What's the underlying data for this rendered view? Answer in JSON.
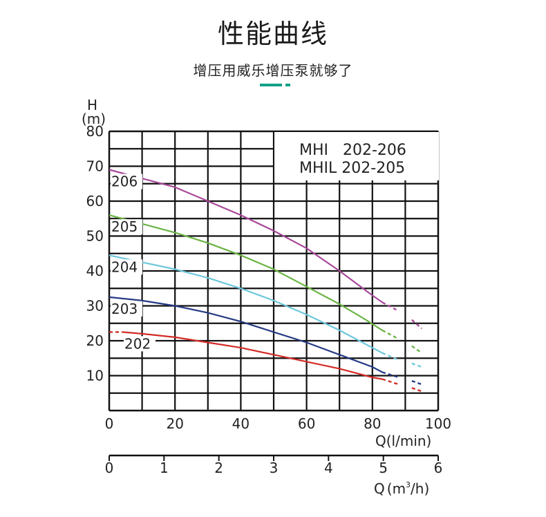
{
  "header": {
    "title": "性能曲线",
    "subtitle": "增压用威乐增压泵就够了",
    "accent_color": "#13a187"
  },
  "chart_data": {
    "type": "line",
    "legend_box": [
      "MHI   202-206",
      "MHIL 202-205"
    ],
    "y_axis": {
      "label_top": "H",
      "label_unit": "(m)",
      "ylim": [
        0,
        80
      ],
      "ticks": [
        10,
        20,
        30,
        40,
        50,
        60,
        70,
        80
      ],
      "tick_labels": [
        "10",
        "20",
        "30",
        "40",
        "50",
        "60",
        "70",
        "80"
      ]
    },
    "x_axis_primary": {
      "label": "Q(l/min)",
      "xlim": [
        0,
        100
      ],
      "ticks": [
        0,
        20,
        40,
        60,
        80,
        100
      ],
      "tick_labels": [
        "0",
        "20",
        "40",
        "60",
        "80",
        "100"
      ]
    },
    "x_axis_secondary": {
      "label_q": "Q",
      "label_paren_open": "(",
      "label_m": "m",
      "label_sup": "3",
      "label_rest": "/h)",
      "xlim": [
        0,
        6
      ],
      "ticks": [
        0,
        1,
        2,
        3,
        4,
        5,
        6
      ],
      "tick_labels": [
        "0",
        "1",
        "2",
        "3",
        "4",
        "5",
        "6"
      ]
    },
    "grid": true,
    "series": [
      {
        "name": "206",
        "color": "#a8489a",
        "solid": [
          [
            0,
            69
          ],
          [
            10,
            66.5
          ],
          [
            20,
            64
          ],
          [
            30,
            60
          ],
          [
            40,
            56
          ],
          [
            50,
            51.5
          ],
          [
            60,
            46.5
          ],
          [
            70,
            40
          ],
          [
            80,
            33
          ],
          [
            83,
            31
          ]
        ],
        "dashed": [
          [
            83,
            31
          ],
          [
            88,
            28.5
          ],
          [
            92,
            26
          ],
          [
            95,
            23.5
          ]
        ]
      },
      {
        "name": "205",
        "color": "#6ab445",
        "solid": [
          [
            0,
            56
          ],
          [
            10,
            53.5
          ],
          [
            20,
            51
          ],
          [
            30,
            48
          ],
          [
            40,
            44.5
          ],
          [
            50,
            40.5
          ],
          [
            60,
            35.5
          ],
          [
            70,
            30.5
          ],
          [
            78,
            26
          ],
          [
            83,
            23
          ]
        ],
        "dashed": [
          [
            83,
            23
          ],
          [
            88,
            20.5
          ],
          [
            92,
            18.5
          ],
          [
            95,
            16.5
          ]
        ]
      },
      {
        "name": "204",
        "color": "#6ec7dc",
        "solid": [
          [
            0,
            44.5
          ],
          [
            10,
            42.5
          ],
          [
            20,
            40.5
          ],
          [
            30,
            38
          ],
          [
            40,
            35
          ],
          [
            50,
            31.5
          ],
          [
            60,
            27.5
          ],
          [
            70,
            23
          ],
          [
            80,
            18
          ],
          [
            83,
            16.5
          ]
        ],
        "dashed": [
          [
            83,
            16.5
          ],
          [
            88,
            14.5
          ],
          [
            92,
            13.5
          ],
          [
            95,
            12.5
          ]
        ]
      },
      {
        "name": "203",
        "color": "#253a84",
        "solid": [
          [
            0,
            32.5
          ],
          [
            10,
            31.5
          ],
          [
            20,
            30
          ],
          [
            30,
            28
          ],
          [
            40,
            25.5
          ],
          [
            50,
            22.5
          ],
          [
            60,
            19.5
          ],
          [
            70,
            16
          ],
          [
            80,
            12.5
          ],
          [
            83,
            11
          ]
        ],
        "dashed": [
          [
            83,
            11
          ],
          [
            88,
            9.5
          ],
          [
            92,
            8.5
          ],
          [
            95,
            7.5
          ]
        ]
      },
      {
        "name": "202",
        "color": "#d32b26",
        "solid": [
          [
            4,
            22.5
          ],
          [
            10,
            22
          ],
          [
            20,
            21
          ],
          [
            30,
            19.5
          ],
          [
            40,
            18
          ],
          [
            50,
            16
          ],
          [
            60,
            14
          ],
          [
            70,
            12
          ],
          [
            80,
            9.5
          ],
          [
            83,
            9
          ]
        ],
        "dashed": [
          [
            0,
            22.5
          ],
          [
            4,
            22.5
          ],
          [
            83,
            9
          ],
          [
            88,
            7.5
          ],
          [
            92,
            6.5
          ],
          [
            95,
            5.5
          ]
        ]
      }
    ]
  }
}
